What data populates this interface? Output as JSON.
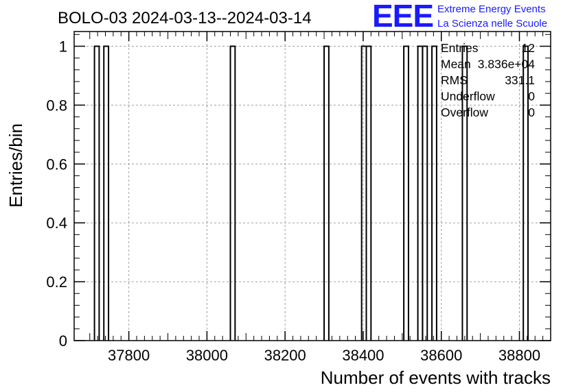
{
  "chart_data": {
    "type": "bar",
    "title": "BOLO-03 2024-03-13--2024-03-14",
    "xlabel": "Number of events with tracks",
    "ylabel": "Entries/bin",
    "xlim": [
      37660,
      38880
    ],
    "ylim": [
      0,
      1.05
    ],
    "bin_width": 12,
    "x_ticks": [
      37800,
      38000,
      38200,
      38400,
      38600,
      38800
    ],
    "y_ticks": [
      0,
      0.2,
      0.4,
      0.6,
      0.8,
      1
    ],
    "y_tick_labels": [
      "0",
      "0.2",
      "0.4",
      "0.6",
      "0.8",
      "1"
    ],
    "grid": true,
    "bins": [
      {
        "x": 37712,
        "value": 1
      },
      {
        "x": 37736,
        "value": 1
      },
      {
        "x": 38060,
        "value": 1
      },
      {
        "x": 38300,
        "value": 1
      },
      {
        "x": 38396,
        "value": 1
      },
      {
        "x": 38408,
        "value": 1
      },
      {
        "x": 38504,
        "value": 1
      },
      {
        "x": 38540,
        "value": 1
      },
      {
        "x": 38552,
        "value": 1
      },
      {
        "x": 38576,
        "value": 1
      },
      {
        "x": 38654,
        "value": 1
      },
      {
        "x": 38810,
        "value": 1
      }
    ],
    "stats": [
      {
        "label": "Entries",
        "value": "12"
      },
      {
        "label": "Mean",
        "value": "3.836e+04"
      },
      {
        "label": "RMS",
        "value": "331.1"
      },
      {
        "label": "Underflow",
        "value": "0"
      },
      {
        "label": "Overflow",
        "value": "0"
      }
    ]
  },
  "logo": {
    "mark": "EEE",
    "line1": "Extreme Energy Events",
    "line2": "La Scienza nelle Scuole"
  }
}
